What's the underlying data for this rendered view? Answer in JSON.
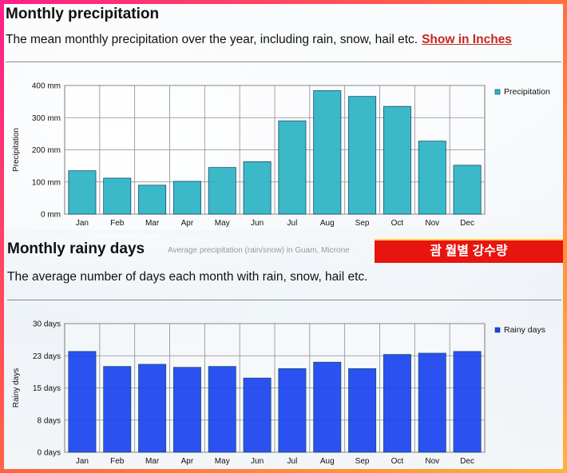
{
  "precip": {
    "title": "Monthly precipitation",
    "description": "The mean monthly precipitation over the year, including rain, snow, hail etc.",
    "link": "Show in Inches",
    "chart_data": {
      "type": "bar",
      "title": "",
      "ylabel": "Precipitation",
      "legend": "Precipitation",
      "legend_position": "top-right",
      "grid": true,
      "categories": [
        "Jan",
        "Feb",
        "Mar",
        "Apr",
        "May",
        "Jun",
        "Jul",
        "Aug",
        "Sep",
        "Oct",
        "Nov",
        "Dec"
      ],
      "values": [
        135,
        112,
        90,
        102,
        145,
        163,
        290,
        384,
        366,
        335,
        227,
        152
      ],
      "ylim": [
        0,
        400
      ],
      "yticks": [
        "0 mm",
        "100 mm",
        "200 mm",
        "300 mm",
        "400 mm"
      ],
      "color": "#2bb4c4"
    }
  },
  "rainy": {
    "title": "Monthly rainy days",
    "source_note": "Average precipitation (rain/snow) in Guam, Microne",
    "banner": "괌 월별 강수량",
    "description": "The average number of days each month with rain, snow, hail etc.",
    "chart_data": {
      "type": "bar",
      "title": "",
      "ylabel": "Rainy days",
      "legend": "Rainy days",
      "legend_position": "top-right",
      "grid": true,
      "categories": [
        "Jan",
        "Feb",
        "Mar",
        "Apr",
        "May",
        "Jun",
        "Jul",
        "Aug",
        "Sep",
        "Oct",
        "Nov",
        "Dec"
      ],
      "values": [
        23.5,
        20,
        20.5,
        19.8,
        20,
        17.3,
        19.5,
        21,
        19.5,
        22.8,
        23.1,
        23.5
      ],
      "ylim": [
        0,
        30
      ],
      "yticks": [
        "0 days",
        "8 days",
        "15 days",
        "23 days",
        "30 days"
      ],
      "color": "#1a44f0"
    }
  }
}
